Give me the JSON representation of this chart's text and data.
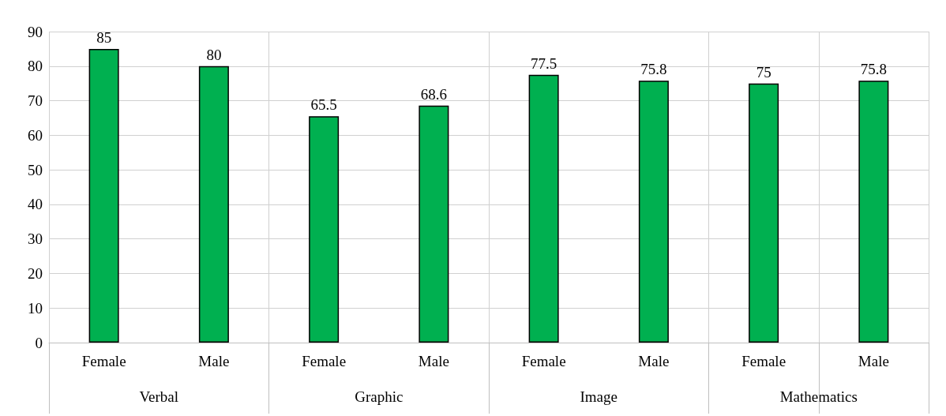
{
  "chart_data": {
    "type": "bar",
    "categories": [
      "Female",
      "Male",
      "Female",
      "Male",
      "Female",
      "Male",
      "Female",
      "Male"
    ],
    "values": [
      85,
      80,
      65.5,
      68.6,
      77.5,
      75.8,
      75,
      75.8
    ],
    "color": "#00b050",
    "ylim": [
      0,
      90
    ],
    "yticks": [
      0,
      10,
      20,
      30,
      40,
      50,
      60,
      70,
      80,
      90
    ],
    "grid": true,
    "data_labels": true,
    "annotations": [
      "Verbal",
      "Graphic",
      "Image",
      "Mathematics"
    ]
  }
}
